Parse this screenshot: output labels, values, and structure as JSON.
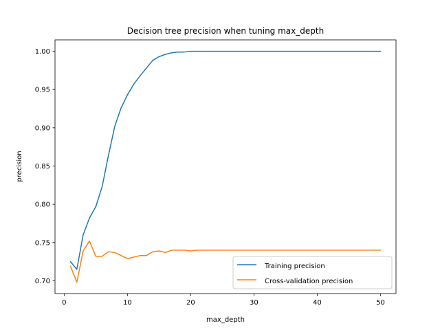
{
  "chart_data": {
    "type": "line",
    "title": "Decision tree precision when tuning max_depth",
    "xlabel": "max_depth",
    "ylabel": "precision",
    "xlim": [
      -1.45,
      52.45
    ],
    "ylim": [
      0.6833,
      1.0149
    ],
    "xticks": [
      0,
      10,
      20,
      30,
      40,
      50
    ],
    "xtick_labels": [
      "0",
      "10",
      "20",
      "30",
      "40",
      "50"
    ],
    "yticks": [
      0.7,
      0.75,
      0.8,
      0.85,
      0.9,
      0.95,
      1.0
    ],
    "ytick_labels": [
      "0.70",
      "0.75",
      "0.80",
      "0.85",
      "0.90",
      "0.95",
      "1.00"
    ],
    "grid": false,
    "legend_position": "lower-right",
    "x": [
      1,
      2,
      3,
      4,
      5,
      6,
      7,
      8,
      9,
      10,
      11,
      12,
      13,
      14,
      15,
      16,
      17,
      18,
      19,
      20,
      21,
      22,
      23,
      24,
      25,
      26,
      27,
      28,
      29,
      30,
      31,
      32,
      33,
      34,
      35,
      36,
      37,
      38,
      39,
      40,
      41,
      42,
      43,
      44,
      45,
      46,
      47,
      48,
      49,
      50
    ],
    "series": [
      {
        "name": "Training precision",
        "color": "#1f77b4",
        "values": [
          0.725,
          0.715,
          0.76,
          0.782,
          0.797,
          0.823,
          0.864,
          0.902,
          0.926,
          0.943,
          0.957,
          0.968,
          0.978,
          0.988,
          0.993,
          0.996,
          0.998,
          0.999,
          0.999,
          1.0,
          1.0,
          1.0,
          1.0,
          1.0,
          1.0,
          1.0,
          1.0,
          1.0,
          1.0,
          1.0,
          1.0,
          1.0,
          1.0,
          1.0,
          1.0,
          1.0,
          1.0,
          1.0,
          1.0,
          1.0,
          1.0,
          1.0,
          1.0,
          1.0,
          1.0,
          1.0,
          1.0,
          1.0,
          1.0,
          1.0
        ]
      },
      {
        "name": "Cross-validation precision",
        "color": "#ff7f0e",
        "values": [
          0.719,
          0.698,
          0.739,
          0.752,
          0.732,
          0.732,
          0.738,
          0.737,
          0.733,
          0.729,
          0.731,
          0.733,
          0.733,
          0.738,
          0.739,
          0.737,
          0.74,
          0.74,
          0.74,
          0.739,
          0.74,
          0.74,
          0.74,
          0.74,
          0.74,
          0.74,
          0.74,
          0.74,
          0.74,
          0.74,
          0.74,
          0.74,
          0.74,
          0.74,
          0.74,
          0.74,
          0.74,
          0.74,
          0.74,
          0.74,
          0.74,
          0.74,
          0.74,
          0.74,
          0.74,
          0.74,
          0.74,
          0.74,
          0.74,
          0.74
        ]
      }
    ]
  }
}
